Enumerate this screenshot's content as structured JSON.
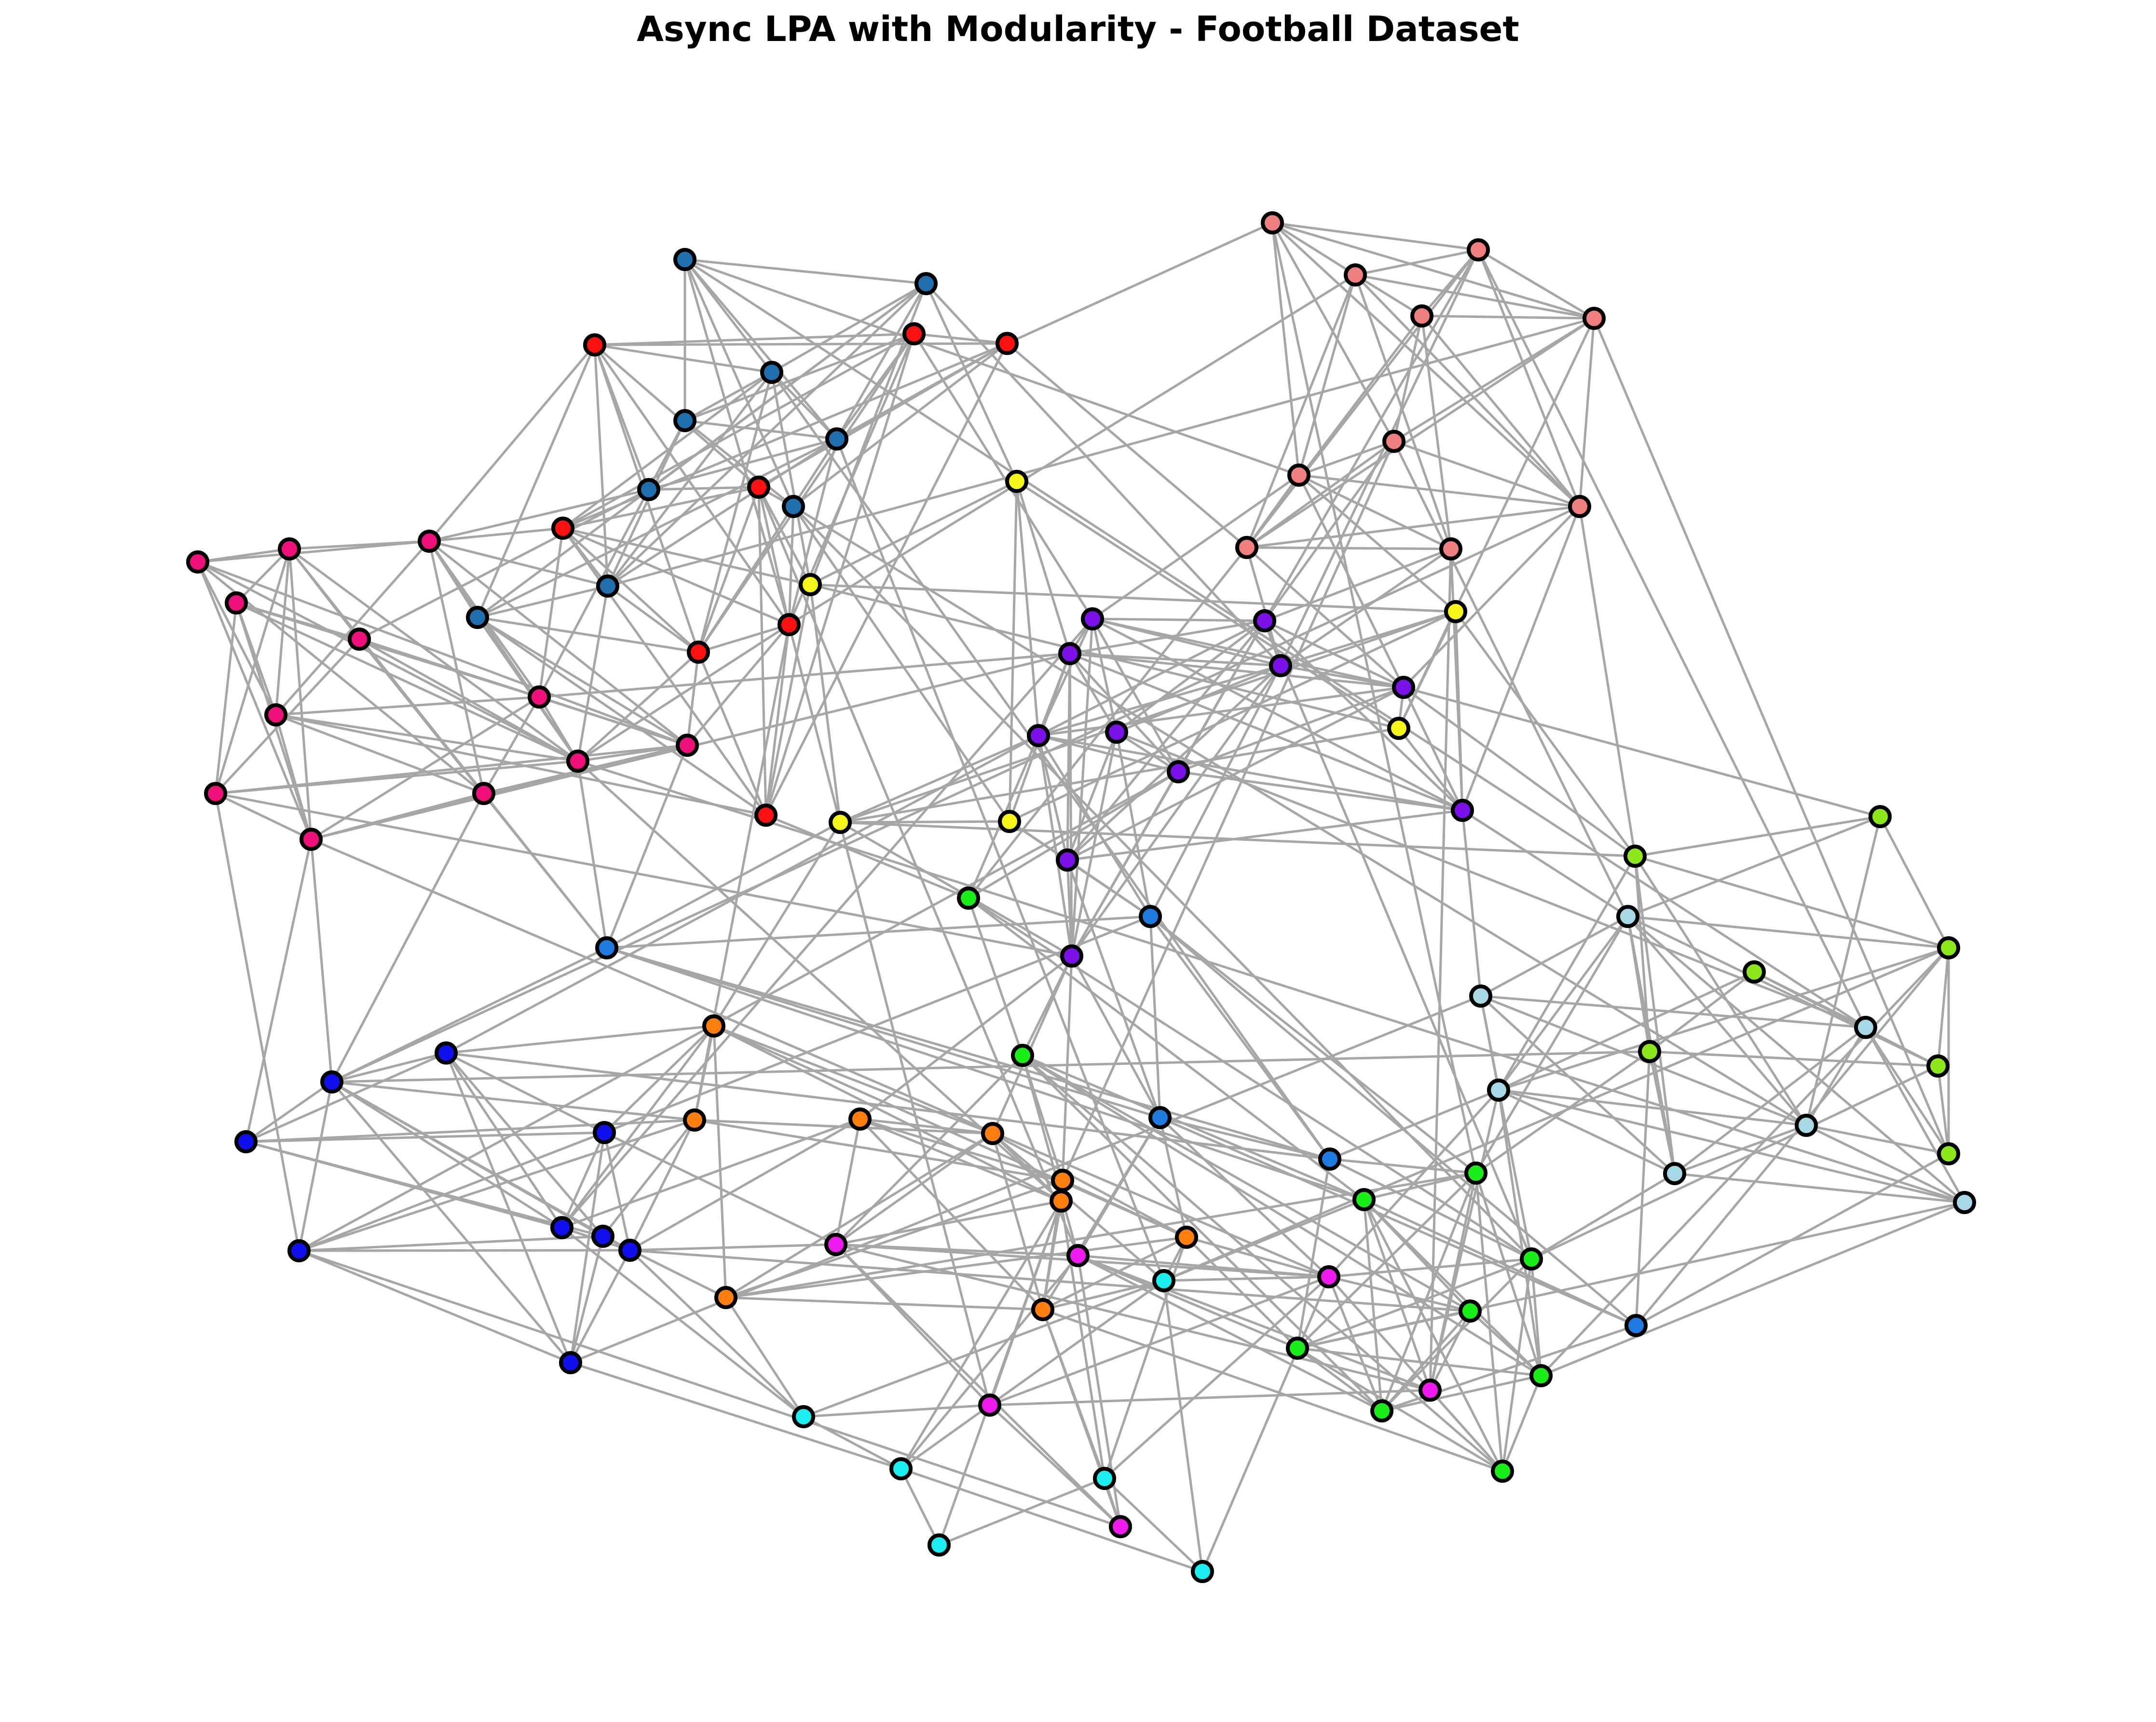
{
  "title": "Async LPA with Modularity - Football Dataset",
  "diagram": {
    "type": "network-graph",
    "edge_color": "#a0a0a0",
    "node_outline_color": "#000000",
    "community_colors": {
      "steelblue": "#1f6fae",
      "red": "#ff1010",
      "salmon": "#f08080",
      "pink": "#f0107a",
      "yellow": "#f5f51a",
      "purple": "#7b10e8",
      "lime": "#8ce81a",
      "lightblue": "#a6d8e6",
      "azure": "#1f7ae0",
      "orange": "#ff7f0e",
      "green": "#1aee1a",
      "blue": "#1010ee",
      "magenta": "#ee1aee",
      "cyan": "#1aeeee"
    }
  }
}
